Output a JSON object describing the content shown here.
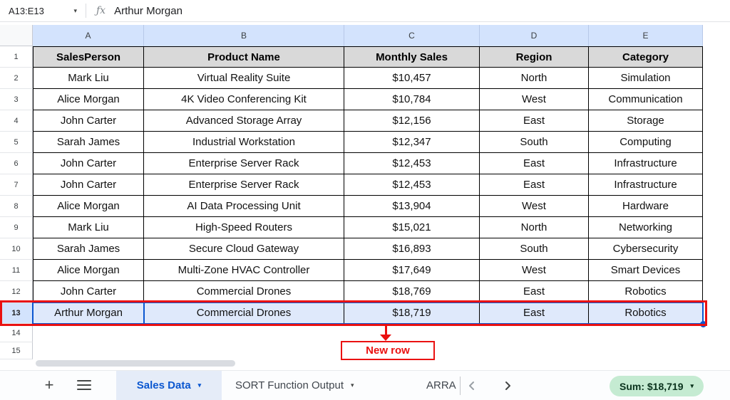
{
  "formula_bar": {
    "name_box_value": "A13:E13",
    "fx_icon": "ƒx",
    "input_value": "Arthur Morgan"
  },
  "grid": {
    "column_letters": [
      "A",
      "B",
      "C",
      "D",
      "E"
    ],
    "table_headers": [
      "SalesPerson",
      "Product Name",
      "Monthly Sales",
      "Region",
      "Category"
    ],
    "rows": [
      {
        "n": 2,
        "cells": [
          "Mark Liu",
          "Virtual Reality Suite",
          "$10,457",
          "North",
          "Simulation"
        ]
      },
      {
        "n": 3,
        "cells": [
          "Alice Morgan",
          "4K Video Conferencing Kit",
          "$10,784",
          "West",
          "Communication"
        ]
      },
      {
        "n": 4,
        "cells": [
          "John Carter",
          "Advanced Storage Array",
          "$12,156",
          "East",
          "Storage"
        ]
      },
      {
        "n": 5,
        "cells": [
          "Sarah James",
          "Industrial Workstation",
          "$12,347",
          "South",
          "Computing"
        ]
      },
      {
        "n": 6,
        "cells": [
          "John Carter",
          "Enterprise Server Rack",
          "$12,453",
          "East",
          "Infrastructure"
        ]
      },
      {
        "n": 7,
        "cells": [
          "John Carter",
          "Enterprise Server Rack",
          "$12,453",
          "East",
          "Infrastructure"
        ]
      },
      {
        "n": 8,
        "cells": [
          "Alice Morgan",
          "AI Data Processing Unit",
          "$13,904",
          "West",
          "Hardware"
        ]
      },
      {
        "n": 9,
        "cells": [
          "Mark Liu",
          "High-Speed Routers",
          "$15,021",
          "North",
          "Networking"
        ]
      },
      {
        "n": 10,
        "cells": [
          "Sarah James",
          "Secure Cloud Gateway",
          "$16,893",
          "South",
          "Cybersecurity"
        ]
      },
      {
        "n": 11,
        "cells": [
          "Alice Morgan",
          "Multi-Zone HVAC Controller",
          "$17,649",
          "West",
          "Smart Devices"
        ]
      },
      {
        "n": 12,
        "cells": [
          "John Carter",
          "Commercial Drones",
          "$18,769",
          "East",
          "Robotics"
        ]
      },
      {
        "n": 13,
        "cells": [
          "Arthur Morgan",
          "Commercial Drones",
          "$18,719",
          "East",
          "Robotics"
        ],
        "selected": true
      }
    ],
    "empty_row_numbers": [
      14,
      15
    ],
    "annotation_label": "New row"
  },
  "bottom_bar": {
    "add_sheet_label": "+",
    "tabs": [
      {
        "label": "Sales Data",
        "active": true
      },
      {
        "label": "SORT Function Output",
        "active": false
      },
      {
        "label": "ARRA",
        "active": false
      }
    ],
    "sum_badge_label": "Sum: $18,719",
    "dropdown_caret": "▾"
  },
  "colors": {
    "selection_header_blue": "#d3e3fd",
    "selection_fill": "#dfe9fb",
    "selection_border": "#0b57d0",
    "annotation_red": "#ea1111",
    "table_header_gray": "#d9d9d9",
    "active_tab_text": "#0b57d0",
    "sum_badge_bg": "#c5ebd2"
  }
}
